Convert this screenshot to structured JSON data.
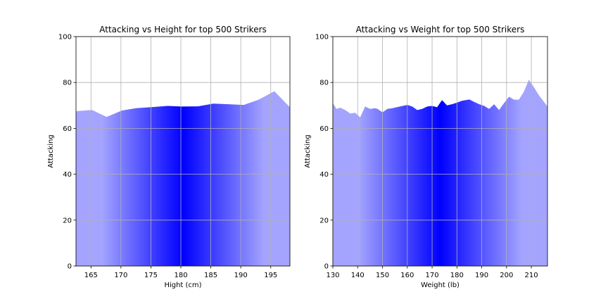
{
  "chart_data": [
    {
      "type": "area",
      "title": "Attacking vs Height for top 500 Strikers",
      "xlabel": "Hight (cm)",
      "ylabel": "Attacking",
      "xlim": [
        162.5,
        198.2
      ],
      "ylim": [
        0,
        100
      ],
      "xticks": [
        165,
        170,
        175,
        180,
        185,
        190,
        195
      ],
      "yticks": [
        0,
        20,
        40,
        60,
        80,
        100
      ],
      "grid": true,
      "fill_colors": [
        "#a4a4ff",
        "#0000ff"
      ],
      "series": [
        {
          "x": [
            162.5,
            165.2,
            167.6,
            170.2,
            172.5,
            175.3,
            177.8,
            180.3,
            182.9,
            185.4,
            188.0,
            190.5,
            193.0,
            195.6,
            198.2
          ],
          "values": [
            67.5,
            68.0,
            65.0,
            67.8,
            68.8,
            69.3,
            69.8,
            69.5,
            69.6,
            70.8,
            70.5,
            70.2,
            72.5,
            76.2,
            69.2
          ]
        }
      ]
    },
    {
      "type": "area",
      "title": "Attacking vs Weight for top 500 Strikers",
      "xlabel": "Weight (lb)",
      "ylabel": "Attacking",
      "xlim": [
        130,
        216.5
      ],
      "ylim": [
        0,
        100
      ],
      "xticks": [
        130,
        140,
        150,
        160,
        170,
        180,
        190,
        200,
        210
      ],
      "yticks": [
        0,
        20,
        40,
        60,
        80,
        100
      ],
      "grid": true,
      "fill_colors": [
        "#a4a4ff",
        "#0000ff"
      ],
      "series": [
        {
          "x": [
            130,
            131.5,
            133,
            135,
            137,
            139,
            141,
            143,
            145,
            147,
            148,
            150,
            152,
            154,
            157,
            160,
            162,
            164,
            166,
            168,
            170,
            172,
            174,
            176,
            178,
            180,
            182,
            185,
            187,
            189,
            191,
            193,
            195,
            197,
            199,
            201,
            203,
            205,
            207,
            209,
            211,
            213,
            216.5
          ],
          "values": [
            71.0,
            68.5,
            69.0,
            68.0,
            66.5,
            66.8,
            64.8,
            69.5,
            68.5,
            68.8,
            68.5,
            67.0,
            68.5,
            68.8,
            69.5,
            70.2,
            69.5,
            68.0,
            68.5,
            69.5,
            69.8,
            69.2,
            72.3,
            70.0,
            70.5,
            71.2,
            72.0,
            72.6,
            71.5,
            70.5,
            69.8,
            68.5,
            70.5,
            68.0,
            71.0,
            73.8,
            72.5,
            72.5,
            76.0,
            81.2,
            78.0,
            74.5,
            69.5
          ]
        }
      ]
    }
  ]
}
